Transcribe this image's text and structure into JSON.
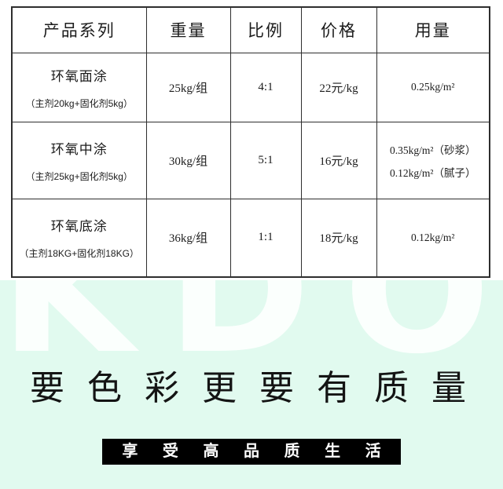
{
  "table": {
    "headers": [
      "产品系列",
      "重量",
      "比例",
      "价格",
      "用量"
    ],
    "rows": [
      {
        "name": "环氧面涂",
        "note": "（主剂20kg+固化剂5kg）",
        "weight": "25kg/组",
        "ratio": "4:1",
        "price": "22元/kg",
        "usage": [
          "0.25kg/m²"
        ]
      },
      {
        "name": "环氧中涂",
        "note": "（主剂25kg+固化剂5kg）",
        "weight": "30kg/组",
        "ratio": "5:1",
        "price": "16元/kg",
        "usage": [
          "0.35kg/m²（砂浆）",
          "0.12kg/m²（腻子）"
        ]
      },
      {
        "name": "环氧底涂",
        "note": "（主剂18KG+固化剂18KG）",
        "weight": "36kg/组",
        "ratio": "1:1",
        "price": "18元/kg",
        "usage": [
          "0.12kg/m²"
        ]
      }
    ]
  },
  "footer": {
    "watermark": "KDO",
    "tagline": "要 色 彩 更 要 有 质 量",
    "banner": "享 受 高 品 质 生 活",
    "colors": {
      "mint_background": "#e1faef",
      "watermark": "#fbfffd",
      "tagline_text": "#141414",
      "banner_background": "#000000",
      "banner_text": "#ffffff",
      "table_border": "#2e2e2e"
    }
  }
}
